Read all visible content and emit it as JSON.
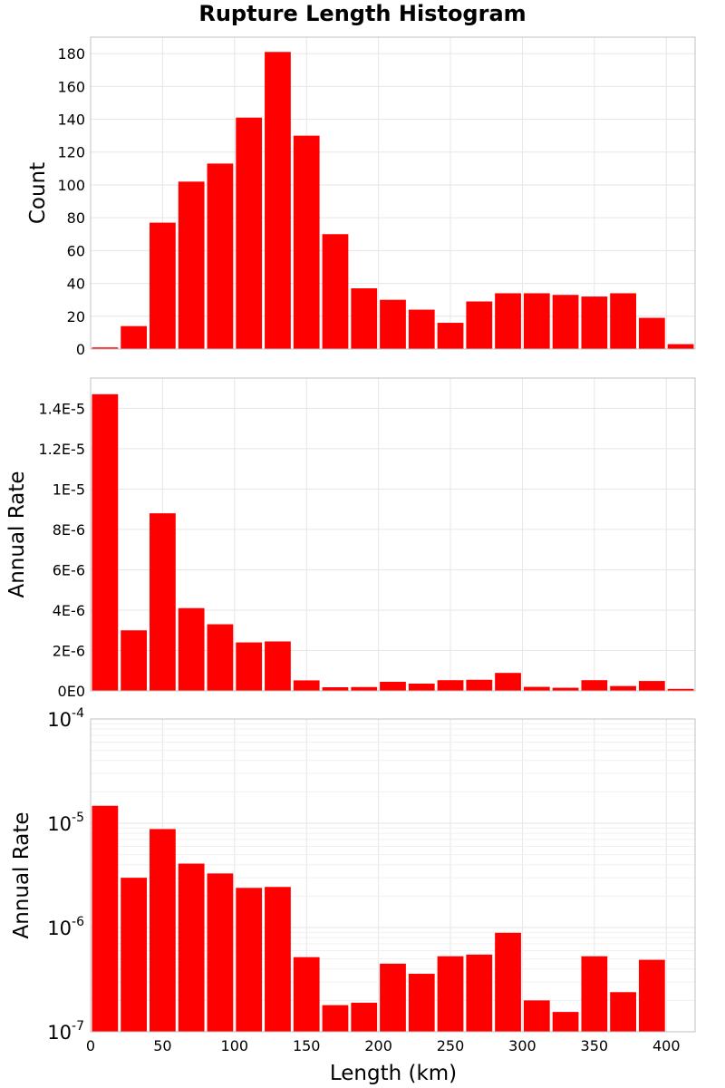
{
  "chart_data": {
    "type": "bar",
    "title": "Rupture Length Histogram",
    "xlabel": "Length (km)",
    "x_ticks": [
      0,
      50,
      100,
      150,
      200,
      250,
      300,
      350,
      400
    ],
    "xlim": [
      0,
      420
    ],
    "bin_width": 20,
    "bin_centers": [
      10,
      30,
      50,
      70,
      90,
      110,
      130,
      150,
      170,
      190,
      210,
      230,
      250,
      270,
      290,
      310,
      330,
      350,
      370,
      390,
      410
    ],
    "bar_color": "#ff0000",
    "grid": true,
    "panels": [
      {
        "ylabel": "Count",
        "scale": "linear",
        "ylim": [
          0,
          190
        ],
        "y_ticks": [
          0,
          20,
          40,
          60,
          80,
          100,
          120,
          140,
          160,
          180
        ],
        "y_tick_labels": [
          "0",
          "20",
          "40",
          "60",
          "80",
          "100",
          "120",
          "140",
          "160",
          "180"
        ],
        "values": [
          1,
          14,
          77,
          102,
          113,
          141,
          181,
          130,
          70,
          37,
          30,
          24,
          16,
          29,
          34,
          34,
          33,
          32,
          34,
          19,
          3
        ]
      },
      {
        "ylabel": "Annual Rate",
        "scale": "linear",
        "ylim": [
          0,
          1.55e-05
        ],
        "y_ticks": [
          0,
          2e-06,
          4e-06,
          6e-06,
          8e-06,
          1e-05,
          1.2e-05,
          1.4e-05
        ],
        "y_tick_labels": [
          "0E0",
          "2E-6",
          "4E-6",
          "6E-6",
          "8E-6",
          "1E-5",
          "1.2E-5",
          "1.4E-5"
        ],
        "values": [
          1.47e-05,
          3e-06,
          8.8e-06,
          4.1e-06,
          3.3e-06,
          2.4e-06,
          2.45e-06,
          5.2e-07,
          1.8e-07,
          1.9e-07,
          4.5e-07,
          3.6e-07,
          5.3e-07,
          5.5e-07,
          8.9e-07,
          2e-07,
          1.55e-07,
          5.3e-07,
          2.4e-07,
          4.9e-07,
          1e-07
        ]
      },
      {
        "ylabel": "Annual Rate",
        "scale": "log",
        "ylim": [
          1e-07,
          0.0001
        ],
        "y_ticks": [
          1e-07,
          1e-06,
          1e-05,
          0.0001
        ],
        "y_tick_mantissa": [
          "10",
          "10",
          "10",
          "10"
        ],
        "y_tick_exponents": [
          "-7",
          "-6",
          "-5",
          "-4"
        ],
        "values": [
          1.47e-05,
          3e-06,
          8.8e-06,
          4.1e-06,
          3.3e-06,
          2.4e-06,
          2.45e-06,
          5.2e-07,
          1.8e-07,
          1.9e-07,
          4.5e-07,
          3.6e-07,
          5.3e-07,
          5.5e-07,
          8.9e-07,
          2e-07,
          1.55e-07,
          5.3e-07,
          2.4e-07,
          4.9e-07,
          1e-07
        ]
      }
    ]
  }
}
